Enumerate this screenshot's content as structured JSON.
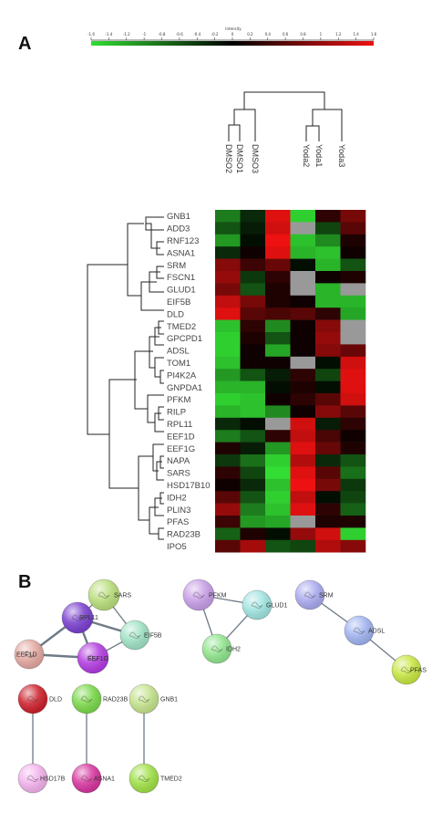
{
  "panels": {
    "a_label": "A",
    "b_label": "B"
  },
  "colorbar": {
    "title": "Intensity",
    "ticks": [
      "-1.6",
      "-1.4",
      "-1.2",
      "-1",
      "-0.8",
      "-0.6",
      "-0.4",
      "-0.2",
      "0",
      "0.2",
      "0.4",
      "0.6",
      "0.8",
      "1",
      "1.2",
      "1.4",
      "1.6"
    ],
    "low_color": "#33dd33",
    "mid_color": "#000000",
    "high_color": "#ee1111"
  },
  "heatmap": {
    "samples": [
      "DMSO2",
      "DMSO1",
      "DMSO3",
      "Yoda2",
      "Yoda1",
      "Yoda3"
    ],
    "genes": [
      "GNB1",
      "ADD3",
      "RNF123",
      "ASNA1",
      "SRM",
      "FSCN1",
      "GLUD1",
      "EIF5B",
      "DLD",
      "TMED2",
      "GPCPD1",
      "ADSL",
      "TOM1",
      "PI4K2A",
      "GNPDA1",
      "PFKM",
      "RILP",
      "RPL11",
      "EEF1D",
      "EEF1G",
      "NAPA",
      "SARS",
      "HSD17B10",
      "IDH2",
      "PLIN3",
      "PFAS",
      "RAD23B",
      "IPO5"
    ],
    "missing_color": "#999999",
    "values": [
      [
        -0.9,
        -0.3,
        1.5,
        -1.5,
        0.3,
        0.8
      ],
      [
        -0.6,
        -0.2,
        1.4,
        null,
        -0.5,
        0.6
      ],
      [
        -1.1,
        -0.1,
        1.6,
        -1.4,
        -1.0,
        0.2
      ],
      [
        -0.3,
        0.1,
        1.5,
        -1.3,
        -1.4,
        0.1
      ],
      [
        0.9,
        0.4,
        0.7,
        -0.1,
        -1.3,
        -0.6
      ],
      [
        1.0,
        -0.4,
        0.3,
        null,
        0.1,
        0.2
      ],
      [
        0.8,
        -0.6,
        0.2,
        null,
        -1.3,
        null
      ],
      [
        1.3,
        0.8,
        0.2,
        0.1,
        -1.3,
        -1.3
      ],
      [
        1.5,
        0.6,
        0.5,
        0.6,
        0.3,
        -1.2
      ],
      [
        -1.4,
        0.3,
        -1.0,
        0.1,
        0.9,
        null
      ],
      [
        -1.5,
        0.2,
        -0.6,
        0.1,
        1.0,
        null
      ],
      [
        -1.5,
        0.1,
        -1.2,
        0.1,
        0.9,
        0.7
      ],
      [
        -1.4,
        0.1,
        0.1,
        null,
        -0.1,
        1.4
      ],
      [
        -1.1,
        -0.6,
        -0.2,
        0.3,
        -0.5,
        1.5
      ],
      [
        -1.3,
        -1.3,
        -0.1,
        0.2,
        -0.1,
        1.5
      ],
      [
        -1.5,
        -1.4,
        0.1,
        0.3,
        0.6,
        1.4
      ],
      [
        -1.3,
        -1.4,
        -1.0,
        0.1,
        0.9,
        0.6
      ],
      [
        -0.3,
        -0.1,
        null,
        1.4,
        -0.2,
        0.3
      ],
      [
        -0.9,
        -0.6,
        0.3,
        1.3,
        0.5,
        0.1
      ],
      [
        0.2,
        -0.2,
        -1.1,
        1.5,
        0.7,
        0.2
      ],
      [
        -0.4,
        -0.8,
        -1.5,
        1.2,
        -0.3,
        -0.6
      ],
      [
        0.3,
        -0.5,
        -1.6,
        1.5,
        0.6,
        -0.8
      ],
      [
        0.1,
        -0.3,
        -1.4,
        1.6,
        0.8,
        -0.4
      ],
      [
        0.6,
        -0.6,
        -1.5,
        1.3,
        -0.1,
        -0.5
      ],
      [
        1.0,
        -0.9,
        -1.4,
        1.5,
        0.3,
        -0.7
      ],
      [
        0.4,
        -1.1,
        -1.2,
        null,
        0.2,
        0.2
      ],
      [
        -0.7,
        0.2,
        -0.1,
        1.0,
        1.4,
        -1.5
      ],
      [
        0.6,
        1.1,
        -0.6,
        -0.5,
        1.2,
        0.9
      ]
    ]
  },
  "network": {
    "nodes": [
      {
        "id": "SARS",
        "label": "SARS",
        "color": "#b8dd7a"
      },
      {
        "id": "RPL11",
        "label": "RPL11",
        "color": "#7a3fcf"
      },
      {
        "id": "EIF5B",
        "label": "EIF5B",
        "color": "#9ee2c4"
      },
      {
        "id": "EEF1D",
        "label": "EEF1D",
        "color": "#e3a7a0"
      },
      {
        "id": "EEF1G",
        "label": "EEF1G",
        "color": "#b23be0"
      },
      {
        "id": "PFKM",
        "label": "PFKM",
        "color": "#c79de6"
      },
      {
        "id": "GLUD1",
        "label": "GLUD1",
        "color": "#9fe4e0"
      },
      {
        "id": "IDH2",
        "label": "IDH2",
        "color": "#8fe48c"
      },
      {
        "id": "SRM",
        "label": "SRM",
        "color": "#a9a9ef"
      },
      {
        "id": "ADSL",
        "label": "ADSL",
        "color": "#9fb3f0"
      },
      {
        "id": "PFAS",
        "label": "PFAS",
        "color": "#c7e640"
      },
      {
        "id": "DLD",
        "label": "DLD",
        "color": "#cc1f2a"
      },
      {
        "id": "HSD17B",
        "label": "HSD17B",
        "color": "#f2b1ec"
      },
      {
        "id": "RAD23B",
        "label": "RAD23B",
        "color": "#7ad84a"
      },
      {
        "id": "ASNA1",
        "label": "ASNA1",
        "color": "#d6349e"
      },
      {
        "id": "GNB1",
        "label": "GNB1",
        "color": "#c4e38c"
      },
      {
        "id": "TMED2",
        "label": "TMED2",
        "color": "#9ee045"
      }
    ],
    "edges": [
      {
        "a": "SARS",
        "b": "RPL11"
      },
      {
        "a": "SARS",
        "b": "EIF5B"
      },
      {
        "a": "RPL11",
        "b": "EIF5B"
      },
      {
        "a": "RPL11",
        "b": "EEF1D"
      },
      {
        "a": "RPL11",
        "b": "EEF1G"
      },
      {
        "a": "EIF5B",
        "b": "EEF1G"
      },
      {
        "a": "EEF1D",
        "b": "EEF1G"
      },
      {
        "a": "PFKM",
        "b": "GLUD1"
      },
      {
        "a": "PFKM",
        "b": "IDH2"
      },
      {
        "a": "GLUD1",
        "b": "IDH2"
      },
      {
        "a": "SRM",
        "b": "ADSL"
      },
      {
        "a": "ADSL",
        "b": "PFAS"
      },
      {
        "a": "DLD",
        "b": "HSD17B"
      },
      {
        "a": "RAD23B",
        "b": "ASNA1"
      },
      {
        "a": "GNB1",
        "b": "TMED2"
      }
    ]
  }
}
